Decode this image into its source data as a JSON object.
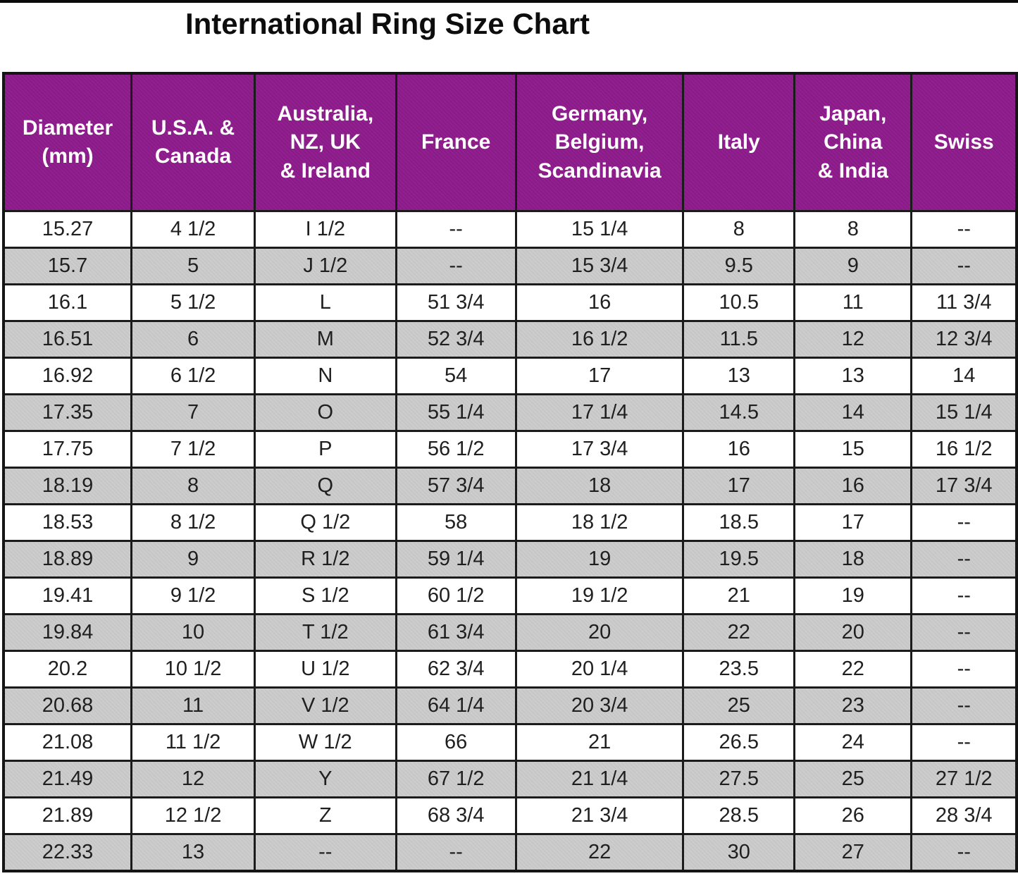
{
  "title": "International Ring Size Chart",
  "colors": {
    "header_bg": "#8E1B8E",
    "header_text": "#FFFFFF",
    "row_alt_bg": "#C9C9C9",
    "row_bg": "#FFFFFF",
    "border": "#1B1B1B",
    "text": "#1F1F1F"
  },
  "table": {
    "columns": [
      {
        "id": "diameter-mm",
        "label": "Diameter\n(mm)"
      },
      {
        "id": "usa-canada",
        "label": "U.S.A. &\nCanada"
      },
      {
        "id": "australia-nz-uk-ireland",
        "label": "Australia,\nNZ, UK\n& Ireland"
      },
      {
        "id": "france",
        "label": "France"
      },
      {
        "id": "germany-belgium-scandinavia",
        "label": "Germany,\nBelgium,\nScandinavia"
      },
      {
        "id": "italy",
        "label": "Italy"
      },
      {
        "id": "japan-china-india",
        "label": "Japan,\nChina\n& India"
      },
      {
        "id": "swiss",
        "label": "Swiss"
      }
    ]
  },
  "chart_data": {
    "type": "table",
    "title": "International Ring Size Chart",
    "columns": [
      "Diameter (mm)",
      "U.S.A. & Canada",
      "Australia, NZ, UK & Ireland",
      "France",
      "Germany, Belgium, Scandinavia",
      "Italy",
      "Japan, China & India",
      "Swiss"
    ],
    "rows": [
      [
        "15.27",
        "4 1/2",
        "I 1/2",
        "--",
        "15 1/4",
        "8",
        "8",
        "--"
      ],
      [
        "15.7",
        "5",
        "J 1/2",
        "--",
        "15 3/4",
        "9.5",
        "9",
        "--"
      ],
      [
        "16.1",
        "5 1/2",
        "L",
        "51 3/4",
        "16",
        "10.5",
        "11",
        "11 3/4"
      ],
      [
        "16.51",
        "6",
        "M",
        "52 3/4",
        "16 1/2",
        "11.5",
        "12",
        "12 3/4"
      ],
      [
        "16.92",
        "6 1/2",
        "N",
        "54",
        "17",
        "13",
        "13",
        "14"
      ],
      [
        "17.35",
        "7",
        "O",
        "55 1/4",
        "17 1/4",
        "14.5",
        "14",
        "15 1/4"
      ],
      [
        "17.75",
        "7 1/2",
        "P",
        "56 1/2",
        "17 3/4",
        "16",
        "15",
        "16 1/2"
      ],
      [
        "18.19",
        "8",
        "Q",
        "57 3/4",
        "18",
        "17",
        "16",
        "17 3/4"
      ],
      [
        "18.53",
        "8 1/2",
        "Q 1/2",
        "58",
        "18 1/2",
        "18.5",
        "17",
        "--"
      ],
      [
        "18.89",
        "9",
        "R 1/2",
        "59 1/4",
        "19",
        "19.5",
        "18",
        "--"
      ],
      [
        "19.41",
        "9 1/2",
        "S 1/2",
        "60 1/2",
        "19 1/2",
        "21",
        "19",
        "--"
      ],
      [
        "19.84",
        "10",
        "T 1/2",
        "61 3/4",
        "20",
        "22",
        "20",
        "--"
      ],
      [
        "20.2",
        "10 1/2",
        "U 1/2",
        "62 3/4",
        "20 1/4",
        "23.5",
        "22",
        "--"
      ],
      [
        "20.68",
        "11",
        "V 1/2",
        "64 1/4",
        "20 3/4",
        "25",
        "23",
        "--"
      ],
      [
        "21.08",
        "11 1/2",
        "W 1/2",
        "66",
        "21",
        "26.5",
        "24",
        "--"
      ],
      [
        "21.49",
        "12",
        "Y",
        "67 1/2",
        "21 1/4",
        "27.5",
        "25",
        "27 1/2"
      ],
      [
        "21.89",
        "12 1/2",
        "Z",
        "68 3/4",
        "21 3/4",
        "28.5",
        "26",
        "28 3/4"
      ],
      [
        "22.33",
        "13",
        "--",
        "--",
        "22",
        "30",
        "27",
        "--"
      ]
    ]
  }
}
